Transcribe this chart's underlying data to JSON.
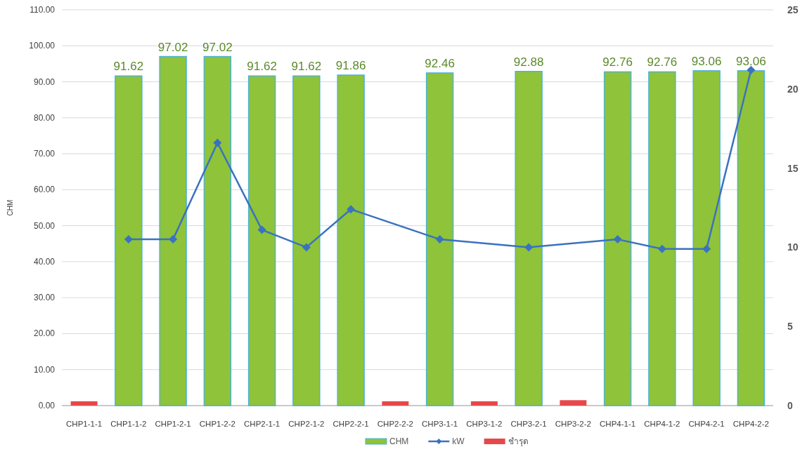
{
  "chart_data": {
    "type": "bar",
    "ylabel": "CHM",
    "categories": [
      "CHP1-1-1",
      "CHP1-1-2",
      "CHP1-2-1",
      "CHP1-2-2",
      "CHP2-1-1",
      "CHP2-1-2",
      "CHP2-2-1",
      "CHP2-2-2",
      "CHP3-1-1",
      "CHP3-1-2",
      "CHP3-2-1",
      "CHP3-2-2",
      "CHP4-1-1",
      "CHP4-1-2",
      "CHP4-2-1",
      "CHP4-2-2"
    ],
    "series": [
      {
        "name": "CHM",
        "color": "#8fc33a",
        "values": [
          null,
          91.62,
          97.02,
          97.02,
          91.62,
          91.62,
          91.86,
          null,
          92.46,
          null,
          92.88,
          null,
          92.76,
          92.76,
          93.06,
          93.06
        ],
        "value_labels": [
          null,
          "91.62",
          "97.02",
          "97.02",
          "91.62",
          "91.62",
          "91.86",
          null,
          "92.46",
          null,
          "92.88",
          null,
          "92.76",
          "92.76",
          "93.06",
          "93.06"
        ]
      },
      {
        "name": "kW",
        "type": "line",
        "axis": "y2",
        "color": "#3a72c0",
        "marker": "diamond",
        "values": [
          null,
          10.5,
          10.5,
          16.6,
          11.1,
          10.0,
          12.4,
          null,
          10.5,
          null,
          10.0,
          null,
          10.5,
          9.9,
          9.9,
          21.2
        ]
      },
      {
        "name": "ชำรุด",
        "color": "#e8474a",
        "values": [
          1.2,
          null,
          null,
          null,
          null,
          null,
          null,
          1.2,
          null,
          1.2,
          null,
          1.5,
          null,
          null,
          null,
          null
        ]
      }
    ],
    "ylim": [
      0,
      110
    ],
    "yticks": [
      {
        "value": 0,
        "label": "0.00"
      },
      {
        "value": 10,
        "label": "10.00"
      },
      {
        "value": 20,
        "label": "20.00"
      },
      {
        "value": 30,
        "label": "30.00"
      },
      {
        "value": 40,
        "label": "40.00"
      },
      {
        "value": 50,
        "label": "50.00"
      },
      {
        "value": 60,
        "label": "60.00"
      },
      {
        "value": 70,
        "label": "70.00"
      },
      {
        "value": 80,
        "label": "80.00"
      },
      {
        "value": 90,
        "label": "90.00"
      },
      {
        "value": 100,
        "label": "100.00"
      },
      {
        "value": 110,
        "label": "110.00"
      }
    ],
    "y2lim": [
      0,
      25
    ],
    "y2ticks": [
      0,
      5,
      10,
      15,
      20,
      25
    ],
    "grid": "y",
    "legend": "bottom"
  }
}
